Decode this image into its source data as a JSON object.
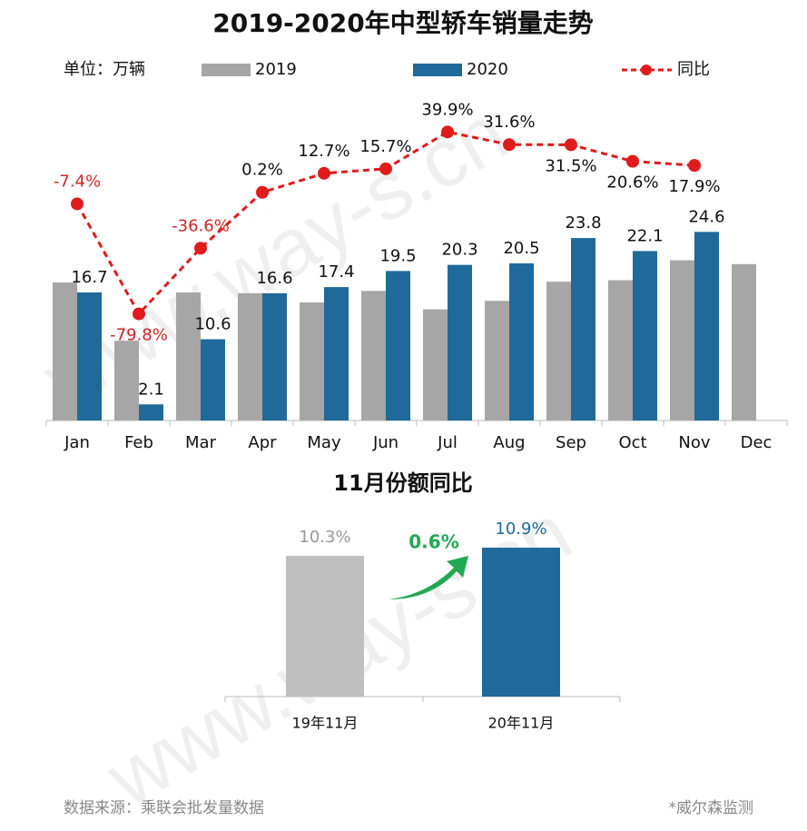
{
  "watermark": "www.way-s.cn",
  "source": "数据来源：乘联会批发量数据",
  "note": "*威尔森监测",
  "chart_data": [
    {
      "type": "bar",
      "title": "2019-2020年中型轿车销量走势",
      "unit": "单位：万辆",
      "categories": [
        "Jan",
        "Feb",
        "Mar",
        "Apr",
        "May",
        "Jun",
        "Jul",
        "Aug",
        "Sep",
        "Oct",
        "Nov",
        "Dec"
      ],
      "ylim": [
        0,
        43
      ],
      "y2lim": [
        -150,
        67
      ],
      "series": [
        {
          "name": "2019",
          "color": "#a6a6a6",
          "values": [
            18.0,
            10.4,
            16.7,
            16.6,
            15.4,
            16.9,
            14.5,
            15.6,
            18.1,
            18.3,
            20.9,
            20.4
          ]
        },
        {
          "name": "2020",
          "color": "#1f6a9a",
          "values": [
            16.7,
            2.1,
            10.6,
            16.6,
            17.4,
            19.5,
            20.3,
            20.5,
            23.8,
            22.1,
            24.6,
            null
          ]
        },
        {
          "name": "同比",
          "type": "line",
          "axis": "y2",
          "color": "#e01b1b",
          "values": [
            -7.4,
            -79.8,
            -36.6,
            0.2,
            12.7,
            15.7,
            39.9,
            31.6,
            31.5,
            20.6,
            17.9,
            null
          ],
          "value_labels": [
            "-7.4%",
            "-79.8%",
            "-36.6%",
            "0.2%",
            "12.7%",
            "15.7%",
            "39.9%",
            "31.6%",
            "31.5%",
            "20.6%",
            "17.9%",
            null
          ]
        }
      ]
    },
    {
      "type": "bar",
      "title": "11月份额同比",
      "categories": [
        "19年11月",
        "20年11月"
      ],
      "values": [
        10.3,
        10.9
      ],
      "value_labels": [
        "10.3%",
        "10.9%"
      ],
      "colors": [
        "#bfbfbf",
        "#1f6a9a"
      ],
      "ylim": [
        0,
        11.5
      ],
      "annotation": "0.6%"
    }
  ]
}
